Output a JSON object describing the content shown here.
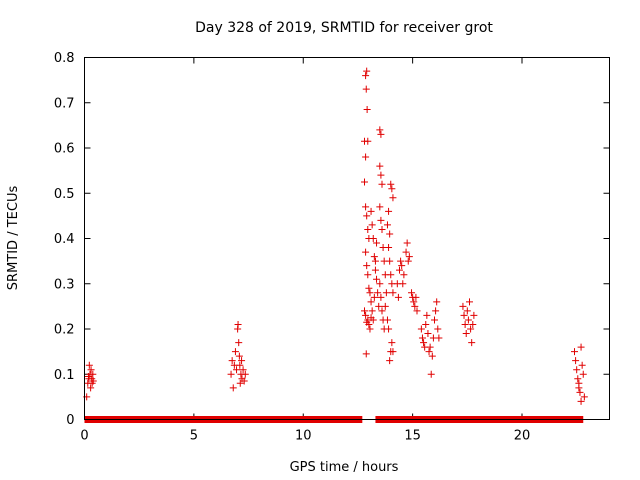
{
  "chart_data": {
    "type": "scatter",
    "title": "Day 328 of 2019, SRMTID for receiver grot",
    "xlabel": "GPS time / hours",
    "ylabel": "SRMTID / TECUs",
    "xlim": [
      0,
      24
    ],
    "ylim": [
      0,
      0.8
    ],
    "x_ticks": [
      0,
      5,
      10,
      15,
      20
    ],
    "x_tick_labels": [
      "0",
      "5",
      "10",
      "15",
      "20"
    ],
    "y_ticks": [
      0,
      0.1,
      0.2,
      0.3,
      0.4,
      0.5,
      0.6,
      0.7,
      0.8
    ],
    "y_tick_labels": [
      "0",
      "0.1",
      "0.2",
      "0.3",
      "0.4",
      "0.5",
      "0.6",
      "0.7",
      "0.8"
    ],
    "marker": "+",
    "marker_color": "#e00000",
    "series": [
      {
        "name": "SRMTID",
        "points": [
          [
            0.1,
            0.05
          ],
          [
            0.15,
            0.08
          ],
          [
            0.2,
            0.09
          ],
          [
            0.22,
            0.12
          ],
          [
            0.25,
            0.1
          ],
          [
            0.28,
            0.07
          ],
          [
            0.3,
            0.11
          ],
          [
            0.33,
            0.09
          ],
          [
            0.35,
            0.08
          ],
          [
            0.38,
            0.1
          ],
          [
            0.4,
            0.085
          ],
          [
            0.18,
            0.095
          ],
          [
            6.7,
            0.1
          ],
          [
            6.75,
            0.13
          ],
          [
            6.8,
            0.07
          ],
          [
            6.85,
            0.12
          ],
          [
            6.9,
            0.15
          ],
          [
            6.95,
            0.11
          ],
          [
            7.0,
            0.2
          ],
          [
            7.02,
            0.21
          ],
          [
            7.05,
            0.17
          ],
          [
            7.08,
            0.14
          ],
          [
            7.1,
            0.12
          ],
          [
            7.12,
            0.08
          ],
          [
            7.15,
            0.1
          ],
          [
            7.18,
            0.13
          ],
          [
            7.2,
            0.09
          ],
          [
            7.25,
            0.11
          ],
          [
            7.3,
            0.085
          ],
          [
            7.35,
            0.1
          ],
          [
            12.85,
            0.76
          ],
          [
            12.9,
            0.77
          ],
          [
            12.88,
            0.73
          ],
          [
            12.92,
            0.685
          ],
          [
            12.8,
            0.615
          ],
          [
            12.85,
            0.58
          ],
          [
            12.95,
            0.615
          ],
          [
            12.8,
            0.525
          ],
          [
            12.85,
            0.47
          ],
          [
            12.9,
            0.45
          ],
          [
            12.95,
            0.42
          ],
          [
            13.0,
            0.4
          ],
          [
            12.85,
            0.37
          ],
          [
            12.9,
            0.34
          ],
          [
            12.95,
            0.32
          ],
          [
            13.0,
            0.29
          ],
          [
            13.05,
            0.28
          ],
          [
            13.1,
            0.26
          ],
          [
            12.8,
            0.24
          ],
          [
            12.85,
            0.23
          ],
          [
            12.9,
            0.215
          ],
          [
            12.95,
            0.22
          ],
          [
            13.0,
            0.21
          ],
          [
            13.05,
            0.2
          ],
          [
            13.1,
            0.225
          ],
          [
            13.15,
            0.24
          ],
          [
            12.88,
            0.145
          ],
          [
            13.1,
            0.46
          ],
          [
            13.15,
            0.43
          ],
          [
            13.2,
            0.4
          ],
          [
            13.25,
            0.36
          ],
          [
            13.3,
            0.33
          ],
          [
            13.35,
            0.31
          ],
          [
            13.4,
            0.28
          ],
          [
            13.45,
            0.25
          ],
          [
            13.2,
            0.22
          ],
          [
            13.25,
            0.27
          ],
          [
            13.3,
            0.35
          ],
          [
            13.35,
            0.39
          ],
          [
            13.5,
            0.64
          ],
          [
            13.55,
            0.63
          ],
          [
            13.5,
            0.56
          ],
          [
            13.55,
            0.54
          ],
          [
            13.6,
            0.52
          ],
          [
            13.5,
            0.47
          ],
          [
            13.55,
            0.44
          ],
          [
            13.6,
            0.42
          ],
          [
            13.65,
            0.38
          ],
          [
            13.7,
            0.35
          ],
          [
            13.75,
            0.32
          ],
          [
            13.5,
            0.3
          ],
          [
            13.55,
            0.27
          ],
          [
            13.6,
            0.24
          ],
          [
            13.65,
            0.22
          ],
          [
            13.7,
            0.2
          ],
          [
            13.75,
            0.25
          ],
          [
            13.8,
            0.28
          ],
          [
            13.85,
            0.43
          ],
          [
            13.9,
            0.46
          ],
          [
            13.95,
            0.41
          ],
          [
            14.0,
            0.52
          ],
          [
            14.05,
            0.51
          ],
          [
            14.1,
            0.49
          ],
          [
            13.9,
            0.38
          ],
          [
            13.95,
            0.35
          ],
          [
            14.0,
            0.32
          ],
          [
            14.05,
            0.3
          ],
          [
            14.1,
            0.28
          ],
          [
            13.85,
            0.22
          ],
          [
            13.9,
            0.2
          ],
          [
            13.95,
            0.13
          ],
          [
            14.0,
            0.15
          ],
          [
            14.05,
            0.17
          ],
          [
            14.1,
            0.15
          ],
          [
            14.3,
            0.3
          ],
          [
            14.35,
            0.27
          ],
          [
            14.4,
            0.33
          ],
          [
            14.45,
            0.35
          ],
          [
            14.5,
            0.34
          ],
          [
            14.55,
            0.3
          ],
          [
            14.6,
            0.32
          ],
          [
            14.7,
            0.37
          ],
          [
            14.75,
            0.39
          ],
          [
            14.8,
            0.35
          ],
          [
            14.85,
            0.36
          ],
          [
            14.95,
            0.28
          ],
          [
            15.0,
            0.27
          ],
          [
            15.05,
            0.26
          ],
          [
            15.1,
            0.25
          ],
          [
            15.15,
            0.27
          ],
          [
            15.2,
            0.24
          ],
          [
            15.4,
            0.2
          ],
          [
            15.45,
            0.18
          ],
          [
            15.5,
            0.17
          ],
          [
            15.55,
            0.16
          ],
          [
            15.6,
            0.21
          ],
          [
            15.65,
            0.23
          ],
          [
            15.7,
            0.19
          ],
          [
            15.75,
            0.15
          ],
          [
            15.8,
            0.16
          ],
          [
            15.85,
            0.1
          ],
          [
            15.9,
            0.14
          ],
          [
            15.95,
            0.18
          ],
          [
            16.0,
            0.22
          ],
          [
            16.05,
            0.24
          ],
          [
            16.1,
            0.26
          ],
          [
            16.15,
            0.2
          ],
          [
            16.2,
            0.18
          ],
          [
            17.3,
            0.25
          ],
          [
            17.35,
            0.23
          ],
          [
            17.4,
            0.21
          ],
          [
            17.45,
            0.19
          ],
          [
            17.5,
            0.24
          ],
          [
            17.55,
            0.22
          ],
          [
            17.6,
            0.26
          ],
          [
            17.65,
            0.2
          ],
          [
            17.7,
            0.17
          ],
          [
            17.75,
            0.21
          ],
          [
            17.8,
            0.23
          ],
          [
            22.4,
            0.15
          ],
          [
            22.45,
            0.13
          ],
          [
            22.5,
            0.11
          ],
          [
            22.55,
            0.09
          ],
          [
            22.6,
            0.07
          ],
          [
            22.65,
            0.06
          ],
          [
            22.7,
            0.16
          ],
          [
            22.75,
            0.12
          ],
          [
            22.8,
            0.1
          ],
          [
            22.85,
            0.05
          ],
          [
            22.6,
            0.08
          ],
          [
            22.7,
            0.04
          ]
        ]
      }
    ],
    "zero_band": {
      "value": 0,
      "segments": [
        [
          0,
          12.7
        ],
        [
          13.3,
          22.8
        ]
      ]
    }
  }
}
